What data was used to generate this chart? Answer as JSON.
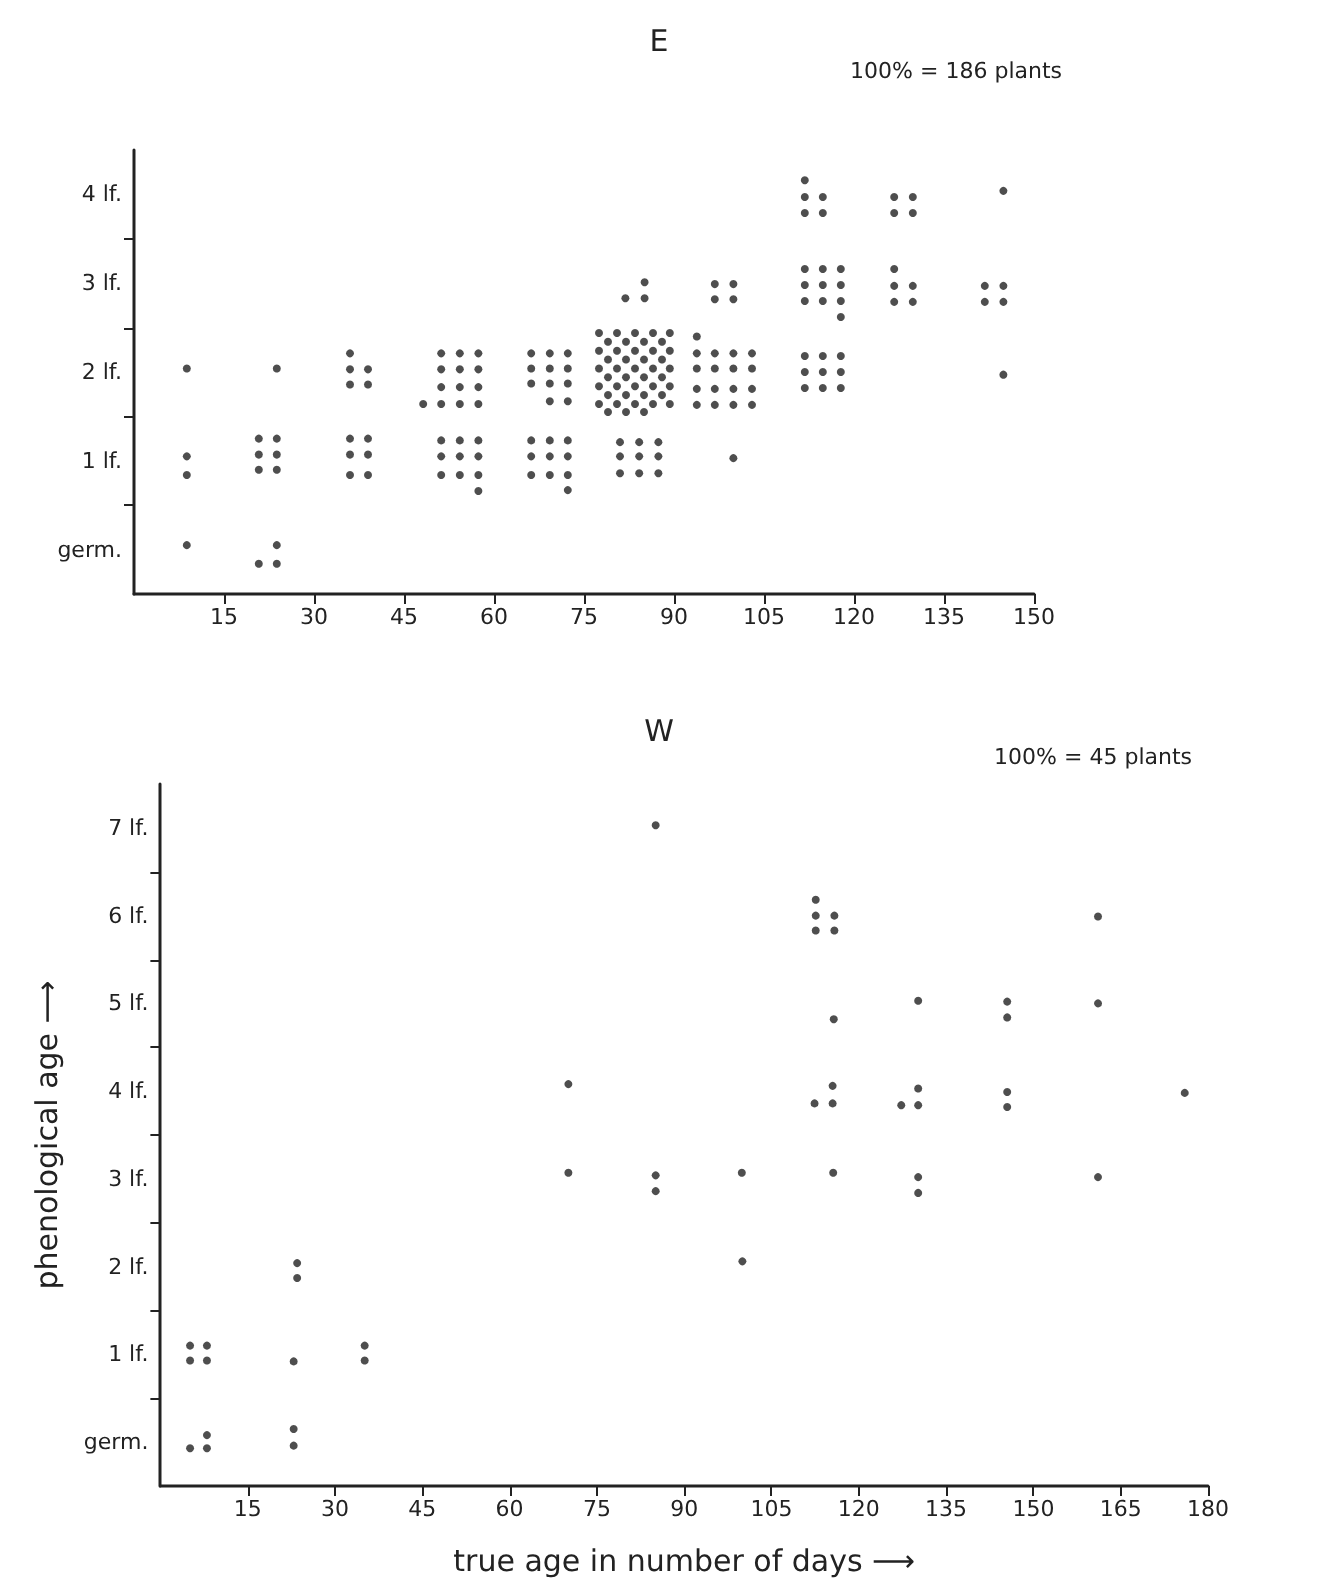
{
  "chart_data": [
    {
      "type": "scatter",
      "title": "E",
      "annotations": [
        "100% = 186 plants"
      ],
      "marker": "circle",
      "xlim": [
        0,
        150
      ],
      "xticks": [
        15,
        30,
        45,
        60,
        75,
        90,
        105,
        120,
        135,
        150
      ],
      "ylim": [
        -0.5,
        4.5
      ],
      "yticks": [
        {
          "value": 0,
          "label": "germ."
        },
        {
          "value": 1,
          "label": "1 lf."
        },
        {
          "value": 2,
          "label": "2 lf."
        },
        {
          "value": 3,
          "label": "3 lf."
        },
        {
          "value": 4,
          "label": "4 lf."
        },
        {
          "value": 0.5,
          "label": null
        },
        {
          "value": 1.5,
          "label": null
        },
        {
          "value": 2.5,
          "label": null
        },
        {
          "value": 3.5,
          "label": null
        }
      ],
      "series": [
        {
          "color": "#222222",
          "x": [
            8.8,
            8.8,
            8.8,
            8.8
          ],
          "values": [
            2.04,
            1.05,
            0.84,
            0.05
          ]
        },
        {
          "color": "#222222",
          "x": [
            23.8,
            20.8,
            23.8,
            20.8,
            23.8,
            20.8,
            23.8,
            23.8,
            20.8,
            23.8
          ],
          "values": [
            2.04,
            1.25,
            1.25,
            1.07,
            1.07,
            0.9,
            0.9,
            0.05,
            -0.16,
            -0.16
          ]
        },
        {
          "color": "#222222",
          "x": [
            36,
            36,
            39,
            36,
            39,
            36,
            39,
            36,
            39,
            36,
            39
          ],
          "values": [
            2.21,
            2.03,
            2.03,
            1.86,
            1.86,
            1.25,
            1.25,
            1.07,
            1.07,
            0.84,
            0.84
          ]
        },
        {
          "color": "#222222",
          "x": [
            51.2,
            54.3,
            57.4,
            51.2,
            54.3,
            57.4,
            51.2,
            54.3,
            57.4,
            48.2,
            51.2,
            54.3,
            57.4,
            51.2,
            54.3,
            57.4,
            51.2,
            54.3,
            57.4,
            51.2,
            54.3,
            57.4,
            57.4
          ],
          "values": [
            2.21,
            2.21,
            2.21,
            2.03,
            2.03,
            2.03,
            1.83,
            1.83,
            1.83,
            1.64,
            1.64,
            1.64,
            1.64,
            1.23,
            1.23,
            1.23,
            1.05,
            1.05,
            1.05,
            0.84,
            0.84,
            0.84,
            0.66
          ]
        },
        {
          "color": "#222222",
          "x": [
            66.2,
            69.3,
            72.3,
            66.2,
            69.3,
            72.3,
            66.2,
            69.3,
            72.3,
            69.3,
            72.3,
            66.2,
            69.3,
            72.3,
            66.2,
            69.3,
            72.3,
            66.2,
            69.3,
            72.3,
            72.3
          ],
          "values": [
            2.21,
            2.21,
            2.21,
            2.04,
            2.04,
            2.04,
            1.87,
            1.87,
            1.87,
            1.67,
            1.67,
            1.23,
            1.23,
            1.23,
            1.05,
            1.05,
            1.05,
            0.84,
            0.84,
            0.84,
            0.67
          ]
        },
        {
          "color": "#222222",
          "x": [
            81,
            84.2,
            87.4,
            81,
            84.2,
            87.4,
            81,
            84.2,
            87.4,
            85.1,
            81.9,
            85.1
          ],
          "values": [
            1.21,
            1.21,
            1.21,
            1.05,
            1.05,
            1.05,
            0.86,
            0.86,
            0.86,
            3.01,
            2.83,
            2.83
          ]
        },
        {
          "color": "#222222",
          "x": [
            77.5,
            80.5,
            83.5,
            86.5,
            89.3,
            79,
            82,
            85,
            88,
            77.5,
            80.5,
            83.5,
            86.5,
            89.3,
            79,
            82,
            85,
            88,
            77.5,
            80.5,
            83.5,
            86.5,
            89.3,
            79,
            82,
            85,
            88,
            77.5,
            80.5,
            83.5,
            86.5,
            89.3,
            79,
            82,
            85,
            88,
            77.5,
            80.5,
            83.5,
            86.5,
            89.3,
            79,
            82,
            85
          ],
          "values": [
            2.44,
            2.44,
            2.44,
            2.44,
            2.44,
            2.34,
            2.34,
            2.34,
            2.34,
            2.24,
            2.24,
            2.24,
            2.24,
            2.24,
            2.14,
            2.14,
            2.14,
            2.14,
            2.04,
            2.04,
            2.04,
            2.04,
            2.04,
            1.94,
            1.94,
            1.94,
            1.94,
            1.84,
            1.84,
            1.84,
            1.84,
            1.84,
            1.74,
            1.74,
            1.74,
            1.74,
            1.64,
            1.64,
            1.64,
            1.64,
            1.64,
            1.55,
            1.55,
            1.55
          ]
        },
        {
          "color": "#222222",
          "x": [
            93.8,
            93.8,
            96.8,
            99.9,
            103,
            93.8,
            96.8,
            99.9,
            103,
            93.8,
            96.8,
            99.9,
            103,
            93.8,
            96.8,
            99.9,
            103,
            96.8,
            99.9,
            96.8,
            99.9,
            99.9
          ],
          "values": [
            2.4,
            2.21,
            2.21,
            2.21,
            2.21,
            2.04,
            2.04,
            2.04,
            2.04,
            1.81,
            1.81,
            1.81,
            1.81,
            1.63,
            1.63,
            1.63,
            1.63,
            2.99,
            2.99,
            2.82,
            2.82,
            1.03
          ]
        },
        {
          "color": "#222222",
          "x": [
            111.8,
            111.8,
            114.8,
            111.8,
            114.8,
            111.8,
            114.8,
            117.8,
            111.8,
            114.8,
            117.8,
            111.8,
            114.8,
            117.8,
            117.8,
            111.8,
            114.8,
            117.8,
            111.8,
            114.8,
            117.8,
            111.8,
            114.8,
            117.8
          ],
          "values": [
            4.16,
            3.97,
            3.97,
            3.79,
            3.79,
            3.16,
            3.16,
            3.16,
            2.98,
            2.98,
            2.98,
            2.8,
            2.8,
            2.8,
            2.62,
            2.18,
            2.18,
            2.18,
            2.0,
            2.0,
            2.0,
            1.82,
            1.82,
            1.82
          ]
        },
        {
          "color": "#222222",
          "x": [
            126.7,
            129.8,
            126.7,
            129.8,
            126.7,
            126.7,
            129.8,
            126.7,
            129.8
          ],
          "values": [
            3.97,
            3.97,
            3.79,
            3.79,
            3.16,
            2.97,
            2.97,
            2.79,
            2.79
          ]
        },
        {
          "color": "#222222",
          "x": [
            144.9,
            141.8,
            144.9,
            141.8,
            144.9,
            144.9
          ],
          "values": [
            4.04,
            2.97,
            2.97,
            2.79,
            2.79,
            1.97
          ]
        }
      ]
    },
    {
      "type": "scatter",
      "title": "W",
      "annotations": [
        "100% = 45 plants"
      ],
      "marker": "circle",
      "xlabel": "true age in number of days ⟶",
      "ylabel": "phenological age ⟶",
      "xlim": [
        0,
        180
      ],
      "xticks": [
        15,
        30,
        45,
        60,
        75,
        90,
        105,
        120,
        135,
        150,
        165,
        180
      ],
      "ylim": [
        -0.5,
        7.5
      ],
      "yticks": [
        {
          "value": 0,
          "label": "germ."
        },
        {
          "value": 1,
          "label": "1 lf."
        },
        {
          "value": 2,
          "label": "2 lf."
        },
        {
          "value": 3,
          "label": "3 lf."
        },
        {
          "value": 4,
          "label": "4 lf."
        },
        {
          "value": 5,
          "label": "5 lf."
        },
        {
          "value": 6,
          "label": "6 lf."
        },
        {
          "value": 7,
          "label": "7 lf."
        },
        {
          "value": 0.5,
          "label": null
        },
        {
          "value": 1.5,
          "label": null
        },
        {
          "value": 2.5,
          "label": null
        },
        {
          "value": 3.5,
          "label": null
        },
        {
          "value": 4.5,
          "label": null
        },
        {
          "value": 5.5,
          "label": null
        },
        {
          "value": 6.5,
          "label": null
        }
      ],
      "series": [
        {
          "color": "#222222",
          "x": [
            5.1,
            8,
            5.1,
            8,
            5.1,
            8,
            8
          ],
          "values": [
            1.1,
            1.1,
            0.93,
            0.93,
            -0.07,
            0.08,
            -0.07
          ]
        },
        {
          "color": "#222222",
          "x": [
            22.9,
            22.9,
            22.9,
            23.5,
            23.5
          ],
          "values": [
            0.92,
            0.15,
            -0.04,
            2.04,
            1.87
          ]
        },
        {
          "color": "#222222",
          "x": [
            35.1,
            35.1
          ],
          "values": [
            1.1,
            0.93
          ]
        },
        {
          "color": "#222222",
          "x": [
            70.1,
            70.1
          ],
          "values": [
            3.07,
            4.08
          ]
        },
        {
          "color": "#222222",
          "x": [
            85.1,
            85.1,
            85.1
          ],
          "values": [
            3.04,
            2.86,
            7.03
          ]
        },
        {
          "color": "#222222",
          "x": [
            99.9,
            100
          ],
          "values": [
            3.07,
            2.06
          ]
        },
        {
          "color": "#222222",
          "x": [
            112.6,
            112.6,
            115.8,
            112.6,
            115.8,
            115.7,
            115.5,
            112.4,
            115.5,
            115.6
          ],
          "values": [
            6.18,
            6.0,
            6.0,
            5.83,
            5.83,
            4.82,
            4.06,
            3.86,
            3.86,
            3.07
          ]
        },
        {
          "color": "#222222",
          "x": [
            130.2,
            130.2,
            127.3,
            130.2,
            130.2,
            130.2
          ],
          "values": [
            5.03,
            4.03,
            3.84,
            3.84,
            3.02,
            2.84
          ]
        },
        {
          "color": "#222222",
          "x": [
            145.5,
            145.5,
            145.5,
            145.5
          ],
          "values": [
            5.02,
            4.84,
            3.99,
            3.82
          ]
        },
        {
          "color": "#222222",
          "x": [
            161.1,
            161.1,
            161.1
          ],
          "values": [
            5.99,
            5.0,
            3.02
          ]
        },
        {
          "color": "#222222",
          "x": [
            176
          ],
          "values": [
            3.98
          ]
        }
      ]
    }
  ]
}
